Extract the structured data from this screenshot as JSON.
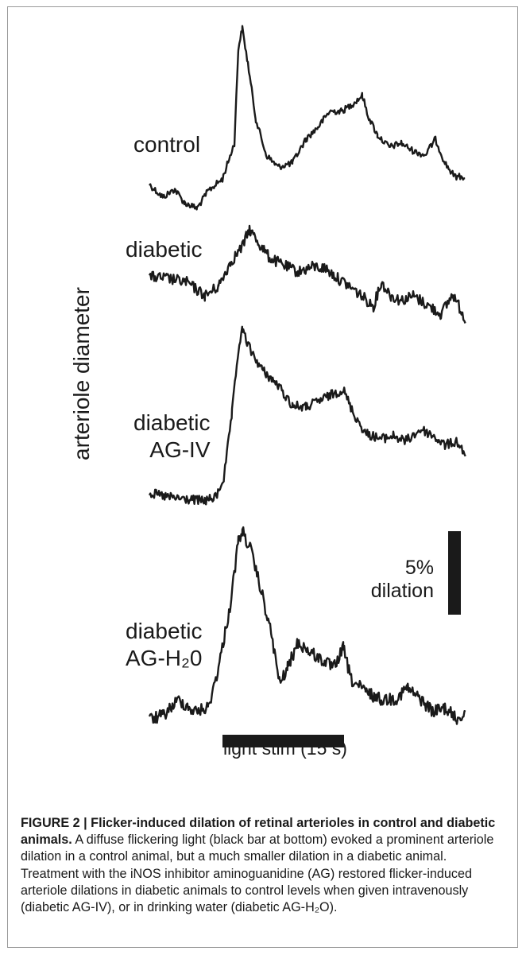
{
  "figure": {
    "ylabel": "arteriole diameter",
    "traces": [
      {
        "label_lines": [
          "control"
        ]
      },
      {
        "label_lines": [
          "diabetic"
        ]
      },
      {
        "label_lines": [
          "diabetic",
          "AG-IV"
        ]
      },
      {
        "label_lines": [
          "diabetic",
          "AG-H₂0"
        ]
      }
    ],
    "scale_bar": {
      "line1": "5%",
      "line2": "dilation"
    },
    "stimulus": {
      "label": "light stim (15 s)"
    }
  },
  "caption": {
    "title": "FIGURE 2 | Flicker-induced dilation of retinal arterioles in control and diabetic animals.",
    "body": "A diffuse flickering light (black bar at bottom) evoked a prominent arteriole dilation in a control animal, but a much smaller dilation in a diabetic animal. Treatment with the iNOS inhibitor aminoguanidine (AG) restored flicker-induced arteriole dilations in diabetic animals to control levels when given intravenously (diabetic AG-IV), or in drinking water (diabetic AG-H₂O)."
  },
  "colors": {
    "trace": "#1a1a1a",
    "frame": "#9a9a9a"
  }
}
